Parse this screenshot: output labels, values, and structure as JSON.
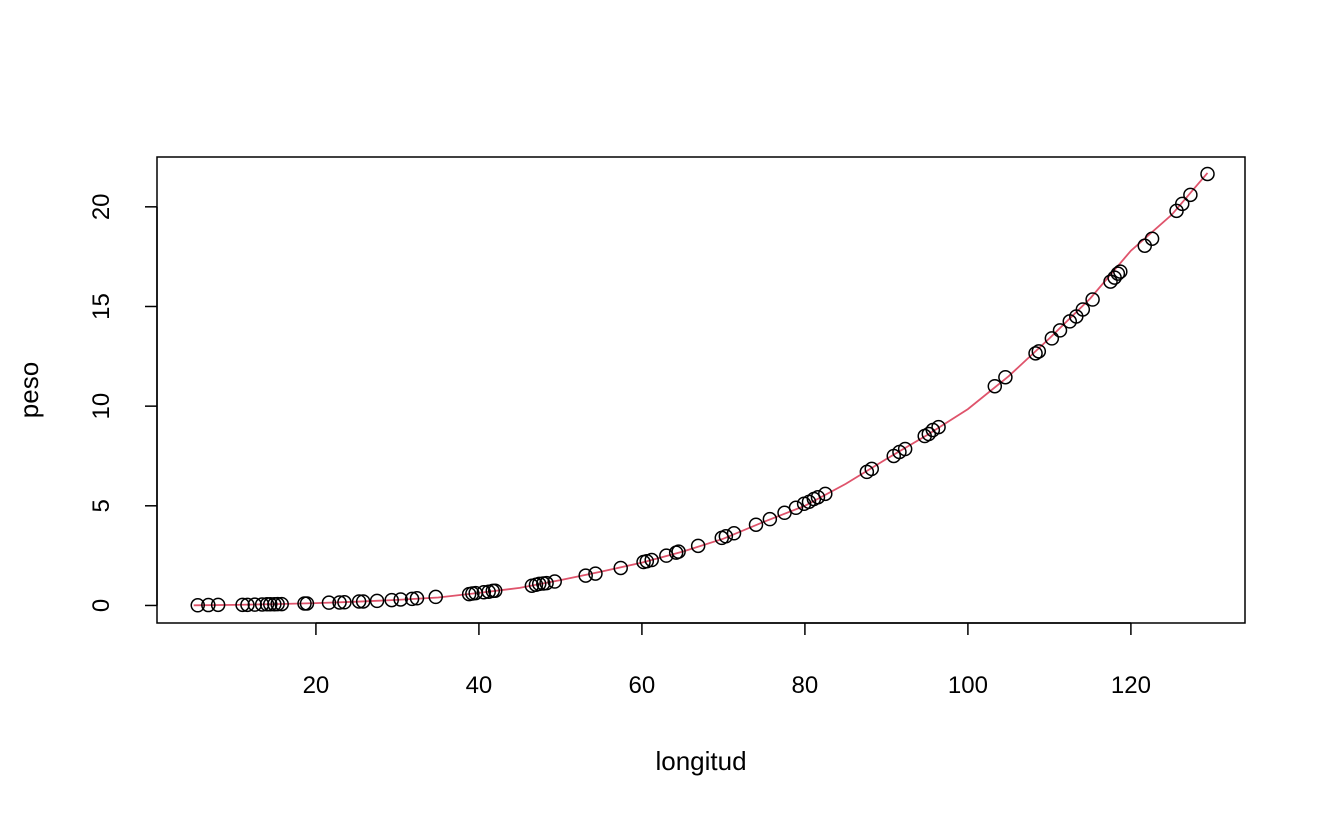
{
  "chart_data": {
    "type": "scatter",
    "title": "",
    "xlabel": "longitud",
    "ylabel": "peso",
    "xlim": [
      0.5,
      134
    ],
    "ylim": [
      -0.88,
      22.5
    ],
    "xticks": [
      20,
      40,
      60,
      80,
      100,
      120
    ],
    "yticks": [
      0,
      5,
      10,
      15,
      20
    ],
    "grid": false,
    "legend": "none",
    "point_color": "#000000",
    "curve_color": "#DF536B",
    "series": [
      {
        "type": "scatter",
        "x": [
          5.5,
          6.8,
          8.0,
          11.0,
          11.6,
          12.5,
          13.4,
          14.0,
          14.4,
          14.9,
          15.3,
          15.8,
          18.6,
          18.9,
          21.6,
          22.9,
          23.5,
          25.3,
          25.8,
          27.5,
          29.3,
          30.4,
          31.8,
          32.4,
          34.7,
          38.8,
          39.2,
          39.6,
          40.6,
          41.2,
          41.7,
          42.0,
          46.5,
          47.0,
          47.4,
          47.9,
          48.3,
          49.3,
          53.1,
          54.3,
          57.4,
          60.2,
          60.6,
          61.2,
          63.0,
          64.2,
          64.5,
          66.9,
          69.8,
          70.3,
          71.3,
          74.0,
          75.7,
          77.5,
          78.9,
          79.9,
          80.5,
          81.1,
          81.6,
          82.5,
          87.6,
          88.2,
          90.9,
          91.6,
          92.3,
          94.7,
          95.2,
          95.7,
          96.4,
          103.3,
          104.6,
          108.3,
          108.7,
          110.3,
          111.3,
          112.5,
          113.3,
          114.1,
          115.3,
          117.5,
          118.0,
          118.4,
          118.7,
          121.7,
          122.6,
          125.6,
          126.3,
          127.3,
          129.4
        ],
        "y": [
          0.01,
          0.02,
          0.03,
          0.03,
          0.03,
          0.04,
          0.05,
          0.06,
          0.06,
          0.06,
          0.07,
          0.07,
          0.1,
          0.1,
          0.14,
          0.15,
          0.16,
          0.2,
          0.2,
          0.23,
          0.27,
          0.3,
          0.33,
          0.36,
          0.43,
          0.57,
          0.6,
          0.62,
          0.66,
          0.69,
          0.73,
          0.74,
          0.99,
          1.04,
          1.08,
          1.1,
          1.12,
          1.2,
          1.5,
          1.6,
          1.88,
          2.18,
          2.22,
          2.28,
          2.5,
          2.65,
          2.7,
          2.99,
          3.39,
          3.47,
          3.62,
          4.05,
          4.33,
          4.65,
          4.9,
          5.1,
          5.2,
          5.34,
          5.43,
          5.6,
          6.7,
          6.85,
          7.5,
          7.7,
          7.85,
          8.5,
          8.6,
          8.8,
          8.95,
          11.0,
          11.45,
          12.65,
          12.75,
          13.4,
          13.8,
          14.25,
          14.5,
          14.85,
          15.35,
          16.25,
          16.45,
          16.65,
          16.75,
          18.05,
          18.4,
          19.8,
          20.15,
          20.6,
          21.65
        ]
      },
      {
        "type": "line",
        "x": [
          5,
          10,
          15,
          20,
          25,
          30,
          35,
          40,
          45,
          50,
          55,
          60,
          65,
          70,
          75,
          80,
          85,
          90,
          95,
          100,
          105,
          110,
          115,
          120,
          125,
          129.4
        ],
        "y": [
          0.01,
          0.03,
          0.07,
          0.12,
          0.19,
          0.28,
          0.4,
          0.63,
          0.88,
          1.27,
          1.7,
          2.15,
          2.7,
          3.35,
          4.2,
          5.0,
          6.1,
          7.35,
          8.55,
          9.85,
          11.5,
          13.4,
          15.4,
          17.8,
          19.6,
          21.7
        ]
      }
    ]
  }
}
